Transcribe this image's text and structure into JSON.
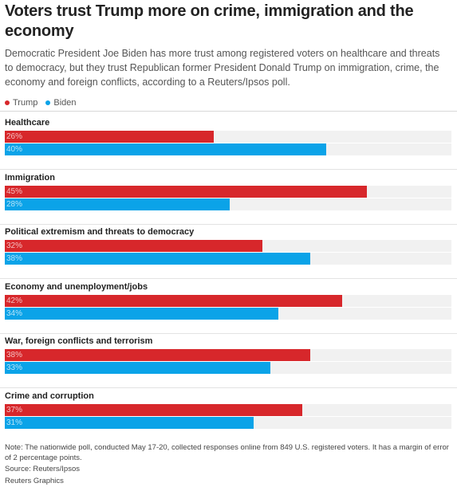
{
  "header": {
    "title": "Voters trust Trump more on crime, immigration and the economy",
    "subtitle": "Democratic President Joe Biden has more trust among registered voters on healthcare and threats to democracy, but they trust Republican former President Donald Trump on immigration, crime, the economy and foreign conflicts, according to a Reuters/Ipsos poll."
  },
  "legend": {
    "trump": "Trump",
    "biden": "Biden"
  },
  "colors": {
    "trump": "#d7272b",
    "biden": "#0ba3e8",
    "track": "#f1f1f1"
  },
  "footer": {
    "note": "Note: The nationwide poll, conducted May 17-20, collected responses online from 849 U.S. registered voters. It has a margin of error of 2 percentage points.",
    "source": "Source: Reuters/Ipsos",
    "credit": "Reuters Graphics"
  },
  "chart_data": {
    "type": "bar",
    "orientation": "horizontal",
    "title": "Voters trust Trump more on crime, immigration and the economy",
    "categories": [
      "Healthcare",
      "Immigration",
      "Political extremism and threats to democracy",
      "Economy and unemployment/jobs",
      "War, foreign conflicts and terrorism",
      "Crime and corruption"
    ],
    "series": [
      {
        "name": "Trump",
        "values": [
          26,
          45,
          32,
          42,
          38,
          37
        ],
        "labels": [
          "26%",
          "45%",
          "32%",
          "42%",
          "38%",
          "37%"
        ]
      },
      {
        "name": "Biden",
        "values": [
          40,
          28,
          38,
          34,
          33,
          31
        ],
        "labels": [
          "40%",
          "28%",
          "38%",
          "34%",
          "33%",
          "31%"
        ]
      }
    ],
    "xlim": [
      0,
      50
    ],
    "grid": false,
    "legend_position": "top-left"
  }
}
